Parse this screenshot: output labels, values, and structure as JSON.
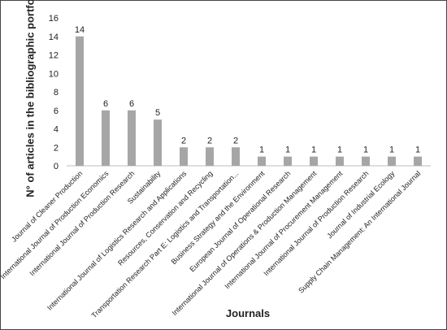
{
  "chart_data": {
    "type": "bar",
    "categories": [
      "Journal of Cleaner Production",
      "International Journal of Production Economics",
      "International Journal of Production Research",
      "Sustainability",
      "International Journal of Logistics Research and Applications",
      "Resources, Conservation and Recycling",
      "Transportation Research Part E: Logistics and Transportation...",
      "Business Strategy and the Environment",
      "European Journal of Operational Research",
      "International Journal of Operations & Production Management",
      "International Journal of Procurement Management",
      "International Journal of Production Research",
      "Journal of Industrial Ecology",
      "Supply Chain Management: An International Journal"
    ],
    "values": [
      14,
      6,
      6,
      5,
      2,
      2,
      2,
      1,
      1,
      1,
      1,
      1,
      1,
      1
    ],
    "color": "#a6a6a6",
    "x_label": "Journals",
    "y_label": "N° of articles in the bibliographic portfolio",
    "ylim": [
      0,
      16
    ],
    "yticks": [
      0,
      2,
      4,
      6,
      8,
      10,
      12,
      14,
      16
    ],
    "grid": false
  }
}
